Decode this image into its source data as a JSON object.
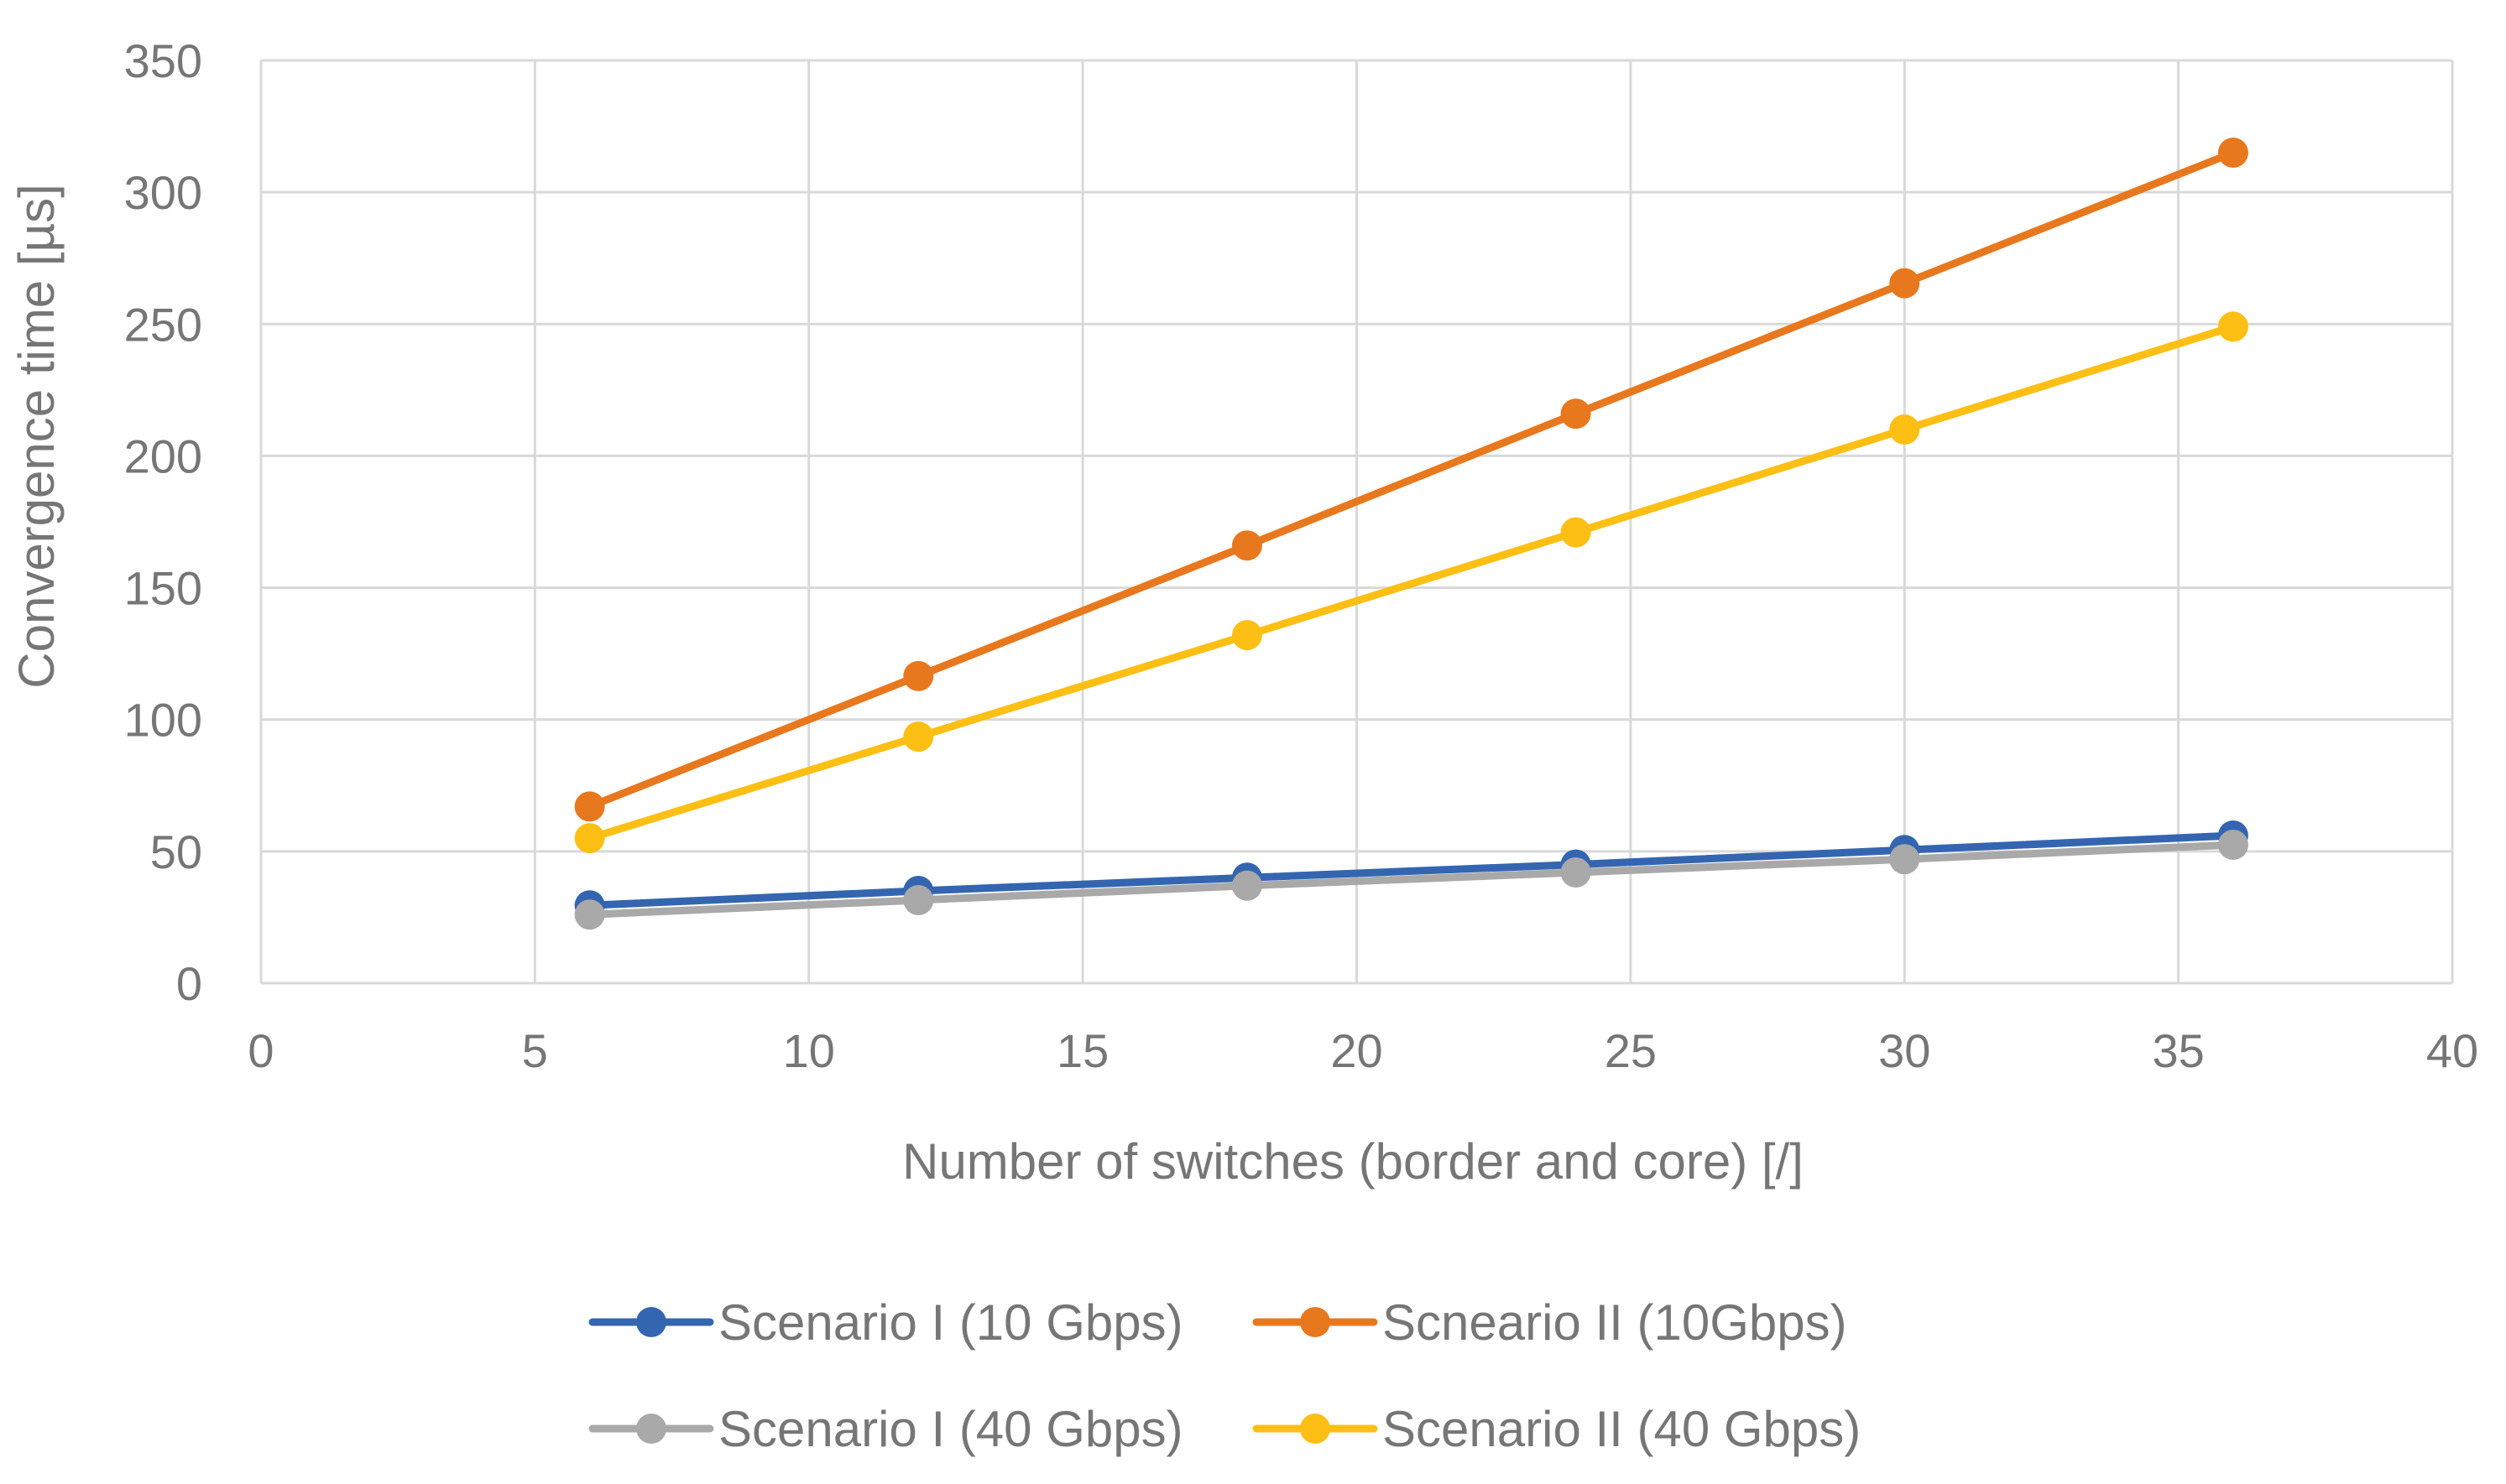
{
  "chart_data": {
    "type": "line",
    "title": "",
    "xlabel": "Number of switches (border and core) [/]",
    "ylabel": "Convergence time [µs]",
    "xlim": [
      0,
      40
    ],
    "ylim": [
      0,
      350
    ],
    "xticks": [
      0,
      5,
      10,
      15,
      20,
      25,
      30,
      35,
      40
    ],
    "yticks": [
      0,
      50,
      100,
      150,
      200,
      250,
      300,
      350
    ],
    "grid": true,
    "legend_position": "bottom",
    "x": [
      6,
      12,
      18,
      24,
      30,
      36
    ],
    "series": [
      {
        "name": "Scenario I (10 Gbps)",
        "color": "#3465b0",
        "values": [
          29.5,
          35,
          40,
          45,
          50.5,
          56
        ]
      },
      {
        "name": "Scneario II (10Gbps)",
        "color": "#e8781e",
        "values": [
          67,
          116.5,
          166,
          216,
          265.5,
          315
        ]
      },
      {
        "name": "Scenario I (40 Gbps)",
        "color": "#a9a9a9",
        "values": [
          26,
          31.5,
          37,
          42,
          47,
          52.5
        ]
      },
      {
        "name": "Scenario II (40 Gbps)",
        "color": "#fdbf14",
        "values": [
          55,
          93.5,
          132,
          171,
          210,
          249
        ]
      }
    ]
  }
}
